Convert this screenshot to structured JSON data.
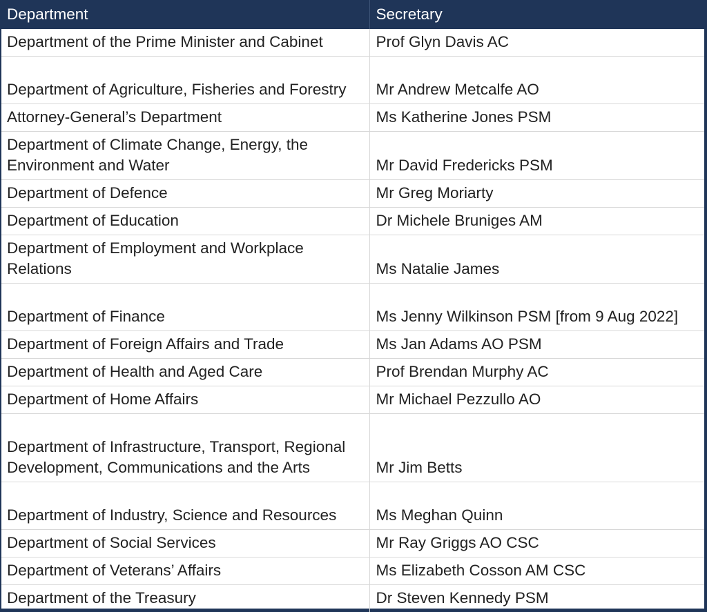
{
  "table": {
    "headers": [
      "Department",
      "Secretary"
    ],
    "rows": [
      [
        "Department of the Prime Minister and Cabinet",
        "Prof Glyn Davis AC"
      ],
      [
        "Department of Agriculture, Fisheries and Forestry",
        "Mr Andrew Metcalfe AO"
      ],
      [
        "Attorney-General’s Department",
        "Ms Katherine Jones PSM"
      ],
      [
        "Department of Climate Change, Energy, the Environment and Water",
        "Mr David Fredericks PSM"
      ],
      [
        "Department of Defence",
        "Mr Greg Moriarty"
      ],
      [
        "Department of Education",
        "Dr Michele Bruniges AM"
      ],
      [
        "Department of Employment and Workplace Relations",
        "Ms Natalie James"
      ],
      [
        "Department of Finance",
        "Ms Jenny Wilkinson PSM [from 9 Aug 2022]"
      ],
      [
        "Department of Foreign Affairs and Trade",
        "Ms Jan Adams AO PSM"
      ],
      [
        "Department of Health and Aged Care",
        "Prof Brendan Murphy AC"
      ],
      [
        "Department of Home Affairs",
        "Mr Michael Pezzullo AO"
      ],
      [
        "Department of Infrastructure, Transport, Regional Development, Communications and the Arts",
        "Mr Jim Betts"
      ],
      [
        "Department of Industry, Science and Resources",
        "Ms Meghan Quinn"
      ],
      [
        "Department of Social Services",
        "Mr Ray Griggs AO CSC"
      ],
      [
        "Department of Veterans’ Affairs",
        "Ms Elizabeth Cosson AM CSC"
      ],
      [
        "Department of the Treasury",
        "Dr Steven Kennedy PSM"
      ]
    ]
  },
  "colors": {
    "header_bg": "#1f3558",
    "header_text": "#ffffff",
    "grid": "#d8d8d8",
    "body_text": "#222222"
  }
}
